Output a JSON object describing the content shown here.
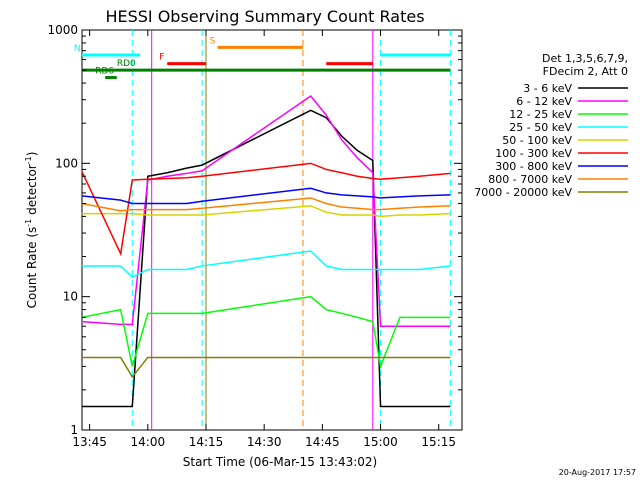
{
  "chart_data": {
    "type": "line",
    "title": "HESSI Observing Summary Count Rates",
    "xlabel": "Start Time (06-Mar-15 13:43:02)",
    "ylabel": "Count Rate (s^-1 detector^-1)",
    "ylabel_parts": {
      "main": "Count Rate (s",
      "exp1": "-1",
      "mid": " detector",
      "exp2": "-1",
      "end": ")"
    },
    "xlim": [
      "13:43:02",
      "15:21:00"
    ],
    "ylim": [
      1,
      1000
    ],
    "log_y": true,
    "grid": false,
    "x_ticks": [
      "13:45",
      "14:00",
      "14:15",
      "14:30",
      "14:45",
      "15:00",
      "15:15"
    ],
    "y_ticks": [
      "1",
      "10",
      "100",
      "1000"
    ],
    "legend_position": "right",
    "legend_header": [
      "Det 1,3,5,6,7,9,",
      "FDecim 2, Att 0"
    ],
    "timestamp": "20-Aug-2017 17:57",
    "series": [
      {
        "name": "3 - 6 keV",
        "color": "#000000",
        "points": [
          [
            "13:43",
            "1.5"
          ],
          [
            "13:53",
            "1.5"
          ],
          [
            "13:56",
            "1.5"
          ],
          [
            "14:00",
            "80"
          ],
          [
            "14:05",
            "85"
          ],
          [
            "14:10",
            "92"
          ],
          [
            "14:14",
            "97"
          ],
          [
            "14:42",
            "250"
          ],
          [
            "14:46",
            "220"
          ],
          [
            "14:50",
            "160"
          ],
          [
            "14:54",
            "125"
          ],
          [
            "14:58",
            "105"
          ],
          [
            "15:00",
            "1.5"
          ],
          [
            "15:05",
            "1.5"
          ],
          [
            "15:10",
            "1.5"
          ],
          [
            "15:18",
            "1.5"
          ]
        ]
      },
      {
        "name": "6 - 12 keV",
        "color": "#ff00ff",
        "points": [
          [
            "13:43",
            "6.5"
          ],
          [
            "13:53",
            "6.2"
          ],
          [
            "13:56",
            "6.2"
          ],
          [
            "14:00",
            "75"
          ],
          [
            "14:05",
            "80"
          ],
          [
            "14:10",
            "84"
          ],
          [
            "14:14",
            "88"
          ],
          [
            "14:42",
            "320"
          ],
          [
            "14:46",
            "230"
          ],
          [
            "14:50",
            "150"
          ],
          [
            "14:54",
            "110"
          ],
          [
            "14:58",
            "85"
          ],
          [
            "15:00",
            "6"
          ],
          [
            "15:05",
            "6"
          ],
          [
            "15:10",
            "6"
          ],
          [
            "15:18",
            "6"
          ]
        ]
      },
      {
        "name": "12 - 25 keV",
        "color": "#00ff00",
        "points": [
          [
            "13:43",
            "7"
          ],
          [
            "13:53",
            "8"
          ],
          [
            "13:56",
            "3"
          ],
          [
            "14:00",
            "7.5"
          ],
          [
            "14:05",
            "7.5"
          ],
          [
            "14:10",
            "7.5"
          ],
          [
            "14:14",
            "7.5"
          ],
          [
            "14:42",
            "10"
          ],
          [
            "14:46",
            "8"
          ],
          [
            "14:50",
            "7.5"
          ],
          [
            "14:54",
            "7"
          ],
          [
            "14:58",
            "6.5"
          ],
          [
            "15:00",
            "3"
          ],
          [
            "15:05",
            "7"
          ],
          [
            "15:10",
            "7"
          ],
          [
            "15:18",
            "7"
          ]
        ]
      },
      {
        "name": "25 - 50 keV",
        "color": "#00ffff",
        "points": [
          [
            "13:43",
            "17"
          ],
          [
            "13:53",
            "17"
          ],
          [
            "13:56",
            "14"
          ],
          [
            "14:00",
            "16"
          ],
          [
            "14:05",
            "16"
          ],
          [
            "14:10",
            "16"
          ],
          [
            "14:14",
            "17"
          ],
          [
            "14:42",
            "22"
          ],
          [
            "14:46",
            "17"
          ],
          [
            "14:50",
            "16"
          ],
          [
            "14:54",
            "16"
          ],
          [
            "14:58",
            "16"
          ],
          [
            "15:00",
            "16"
          ],
          [
            "15:05",
            "16"
          ],
          [
            "15:10",
            "16"
          ],
          [
            "15:18",
            "17"
          ]
        ]
      },
      {
        "name": "50 - 100 keV",
        "color": "#d4d400",
        "points": [
          [
            "13:43",
            "42"
          ],
          [
            "13:53",
            "42"
          ],
          [
            "13:56",
            "42"
          ],
          [
            "14:00",
            "41"
          ],
          [
            "14:05",
            "41"
          ],
          [
            "14:10",
            "41"
          ],
          [
            "14:14",
            "41"
          ],
          [
            "14:42",
            "48"
          ],
          [
            "14:46",
            "43"
          ],
          [
            "14:50",
            "41"
          ],
          [
            "14:54",
            "41"
          ],
          [
            "14:58",
            "41"
          ],
          [
            "15:00",
            "40"
          ],
          [
            "15:05",
            "41"
          ],
          [
            "15:10",
            "41"
          ],
          [
            "15:18",
            "42"
          ]
        ]
      },
      {
        "name": "100 - 300 keV",
        "color": "#ff0000",
        "points": [
          [
            "13:43",
            "87"
          ],
          [
            "13:53",
            "21"
          ],
          [
            "13:56",
            "75"
          ],
          [
            "14:00",
            "76"
          ],
          [
            "14:05",
            "77"
          ],
          [
            "14:10",
            "78"
          ],
          [
            "14:14",
            "80"
          ],
          [
            "14:42",
            "100"
          ],
          [
            "14:46",
            "90"
          ],
          [
            "14:50",
            "85"
          ],
          [
            "14:54",
            "80"
          ],
          [
            "14:58",
            "77"
          ],
          [
            "15:00",
            "76"
          ],
          [
            "15:05",
            "78"
          ],
          [
            "15:10",
            "80"
          ],
          [
            "15:18",
            "84"
          ]
        ]
      },
      {
        "name": "300 - 800 keV",
        "color": "#0000ff",
        "points": [
          [
            "13:43",
            "57"
          ],
          [
            "13:53",
            "53"
          ],
          [
            "13:56",
            "50"
          ],
          [
            "14:00",
            "50"
          ],
          [
            "14:05",
            "50"
          ],
          [
            "14:10",
            "50"
          ],
          [
            "14:14",
            "52"
          ],
          [
            "14:42",
            "65"
          ],
          [
            "14:46",
            "60"
          ],
          [
            "14:50",
            "58"
          ],
          [
            "14:54",
            "57"
          ],
          [
            "14:58",
            "56"
          ],
          [
            "15:00",
            "55"
          ],
          [
            "15:05",
            "56"
          ],
          [
            "15:10",
            "57"
          ],
          [
            "15:18",
            "58"
          ]
        ]
      },
      {
        "name": "800 - 7000 keV",
        "color": "#ff8000",
        "points": [
          [
            "13:43",
            "50"
          ],
          [
            "13:53",
            "44"
          ],
          [
            "13:56",
            "45"
          ],
          [
            "14:00",
            "45"
          ],
          [
            "14:05",
            "45"
          ],
          [
            "14:10",
            "45"
          ],
          [
            "14:14",
            "46"
          ],
          [
            "14:42",
            "55"
          ],
          [
            "14:46",
            "50"
          ],
          [
            "14:50",
            "47"
          ],
          [
            "14:54",
            "46"
          ],
          [
            "14:58",
            "45"
          ],
          [
            "15:00",
            "45"
          ],
          [
            "15:05",
            "46"
          ],
          [
            "15:10",
            "47"
          ],
          [
            "15:18",
            "48"
          ]
        ]
      },
      {
        "name": "7000 - 20000 keV",
        "color": "#808000",
        "points": [
          [
            "13:43",
            "3.5"
          ],
          [
            "13:53",
            "3.5"
          ],
          [
            "13:56",
            "2.5"
          ],
          [
            "14:00",
            "3.5"
          ],
          [
            "14:05",
            "3.5"
          ],
          [
            "14:10",
            "3.5"
          ],
          [
            "14:14",
            "3.5"
          ],
          [
            "14:42",
            "3.5"
          ],
          [
            "14:46",
            "3.5"
          ],
          [
            "14:50",
            "3.5"
          ],
          [
            "14:54",
            "3.5"
          ],
          [
            "14:58",
            "3.5"
          ],
          [
            "15:00",
            "3.5"
          ],
          [
            "15:05",
            "3.5"
          ],
          [
            "15:10",
            "3.5"
          ],
          [
            "15:18",
            "3.5"
          ]
        ]
      }
    ],
    "flag_bars": [
      {
        "label": "N",
        "color": "#00ffff",
        "y": 650,
        "segments": [
          [
            "13:43",
            "13:58"
          ],
          [
            "15:00",
            "15:18"
          ]
        ]
      },
      {
        "label": "F",
        "color": "#ff0000",
        "y": 560,
        "segments": [
          [
            "14:05",
            "14:15"
          ],
          [
            "14:46",
            "14:58"
          ]
        ]
      },
      {
        "label": "S",
        "color": "#ff8000",
        "y": 740,
        "segments": [
          [
            "14:18",
            "14:40"
          ]
        ]
      },
      {
        "label": "RD0",
        "color": "#008000",
        "y": 500,
        "segments": [
          [
            "13:43",
            "15:18"
          ]
        ]
      },
      {
        "label": "RD6",
        "color": "#008000",
        "y": 440,
        "segments": [
          [
            "13:49",
            "13:52"
          ]
        ]
      }
    ],
    "vertical_markers": [
      {
        "time": "13:56",
        "color": "#00ffff",
        "style": "dashed"
      },
      {
        "time": "14:01",
        "color": "#ff00ff",
        "style": "solid"
      },
      {
        "time": "14:14",
        "color": "#00ffff",
        "style": "dashed"
      },
      {
        "time": "14:15",
        "color": "#808000",
        "style": "solid"
      },
      {
        "time": "14:40",
        "color": "#ff8000",
        "style": "dashed"
      },
      {
        "time": "14:58",
        "color": "#ff00ff",
        "style": "solid"
      },
      {
        "time": "15:00",
        "color": "#00ffff",
        "style": "dashed"
      },
      {
        "time": "15:18",
        "color": "#00ffff",
        "style": "dashed"
      }
    ]
  }
}
